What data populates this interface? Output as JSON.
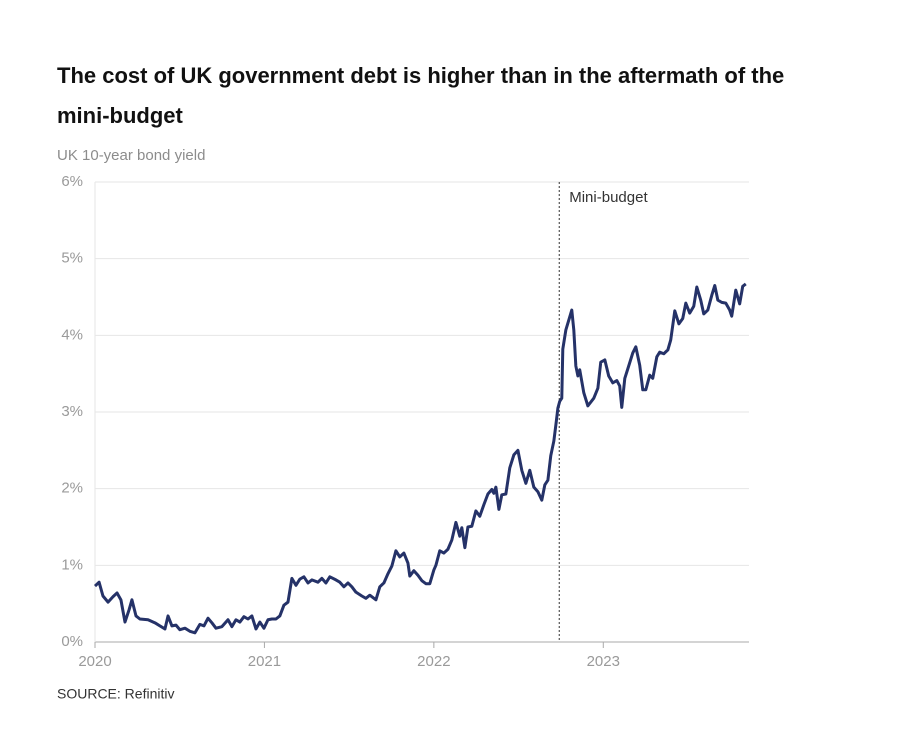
{
  "chart_data": {
    "type": "line",
    "title": "The cost of UK government debt is higher than in the aftermath of the mini-budget",
    "subtitle": "UK 10-year bond yield",
    "source": "SOURCE: Refinitiv",
    "annotation": {
      "text": "Mini-budget",
      "x": 2022.74
    },
    "xlim": [
      2020,
      2023.86
    ],
    "xticks": [
      2020,
      2021,
      2022,
      2023
    ],
    "ylim": [
      0,
      6
    ],
    "yticks": [
      {
        "value": 0,
        "label": "0%"
      },
      {
        "value": 1,
        "label": "1%"
      },
      {
        "value": 2,
        "label": "2%"
      },
      {
        "value": 3,
        "label": "3%"
      },
      {
        "value": 4,
        "label": "4%"
      },
      {
        "value": 5,
        "label": "5%"
      },
      {
        "value": 6,
        "label": "6%"
      }
    ],
    "grid": true,
    "color": "#253268",
    "x": [
      2020.0,
      2020.024,
      2020.047,
      2020.077,
      2020.106,
      2020.13,
      2020.153,
      2020.177,
      2020.201,
      2020.218,
      2020.242,
      2020.265,
      2020.313,
      2020.354,
      2020.383,
      2020.413,
      2020.431,
      2020.454,
      2020.478,
      2020.501,
      2020.531,
      2020.56,
      2020.59,
      2020.619,
      2020.643,
      2020.667,
      2020.69,
      2020.714,
      2020.749,
      2020.785,
      2020.808,
      2020.832,
      2020.855,
      2020.879,
      2020.903,
      2020.926,
      2020.95,
      2020.973,
      2020.997,
      2021.021,
      2021.044,
      2021.068,
      2021.091,
      2021.115,
      2021.139,
      2021.162,
      2021.186,
      2021.209,
      2021.233,
      2021.257,
      2021.28,
      2021.316,
      2021.339,
      2021.363,
      2021.386,
      2021.422,
      2021.445,
      2021.469,
      2021.493,
      2021.516,
      2021.54,
      2021.575,
      2021.599,
      2021.622,
      2021.658,
      2021.681,
      2021.705,
      2021.729,
      2021.752,
      2021.776,
      2021.799,
      2021.823,
      2021.847,
      2021.858,
      2021.882,
      2021.906,
      2021.929,
      2021.953,
      2021.976,
      2022.0,
      2022.012,
      2022.035,
      2022.059,
      2022.083,
      2022.106,
      2022.13,
      2022.153,
      2022.165,
      2022.183,
      2022.201,
      2022.224,
      2022.248,
      2022.271,
      2022.295,
      2022.319,
      2022.342,
      2022.354,
      2022.366,
      2022.384,
      2022.401,
      2022.425,
      2022.448,
      2022.472,
      2022.496,
      2022.519,
      2022.543,
      2022.566,
      2022.59,
      2022.614,
      2022.637,
      2022.655,
      2022.673,
      2022.69,
      2022.708,
      2022.72,
      2022.732,
      2022.743,
      2022.755,
      2022.761,
      2022.779,
      2022.802,
      2022.814,
      2022.826,
      2022.838,
      2022.85,
      2022.861,
      2022.885,
      2022.909,
      2022.944,
      2022.968,
      2022.985,
      2023.009,
      2023.032,
      2023.056,
      2023.08,
      2023.097,
      2023.109,
      2023.127,
      2023.15,
      2023.174,
      2023.192,
      2023.215,
      2023.233,
      2023.251,
      2023.274,
      2023.292,
      2023.316,
      2023.333,
      2023.357,
      2023.381,
      2023.398,
      2023.422,
      2023.446,
      2023.469,
      2023.487,
      2023.51,
      2023.534,
      2023.552,
      2023.575,
      2023.593,
      2023.617,
      2023.64,
      2023.658,
      2023.676,
      2023.699,
      2023.723,
      2023.746,
      2023.758,
      2023.782,
      2023.805,
      2023.823,
      2023.841
    ],
    "values": [
      0.73,
      0.78,
      0.6,
      0.52,
      0.59,
      0.64,
      0.55,
      0.26,
      0.42,
      0.55,
      0.34,
      0.3,
      0.29,
      0.25,
      0.21,
      0.17,
      0.34,
      0.21,
      0.22,
      0.16,
      0.18,
      0.14,
      0.12,
      0.23,
      0.21,
      0.31,
      0.25,
      0.18,
      0.2,
      0.29,
      0.2,
      0.29,
      0.26,
      0.33,
      0.3,
      0.34,
      0.17,
      0.26,
      0.18,
      0.29,
      0.3,
      0.3,
      0.34,
      0.48,
      0.52,
      0.83,
      0.74,
      0.82,
      0.85,
      0.77,
      0.81,
      0.78,
      0.83,
      0.77,
      0.85,
      0.81,
      0.78,
      0.72,
      0.77,
      0.72,
      0.65,
      0.6,
      0.57,
      0.61,
      0.55,
      0.72,
      0.77,
      0.89,
      0.99,
      1.19,
      1.11,
      1.16,
      1.03,
      0.86,
      0.93,
      0.87,
      0.8,
      0.76,
      0.76,
      0.94,
      1.0,
      1.19,
      1.16,
      1.21,
      1.33,
      1.56,
      1.38,
      1.49,
      1.23,
      1.5,
      1.51,
      1.71,
      1.64,
      1.79,
      1.93,
      1.99,
      1.94,
      2.02,
      1.73,
      1.92,
      1.93,
      2.27,
      2.44,
      2.5,
      2.24,
      2.07,
      2.24,
      2.02,
      1.96,
      1.85,
      2.05,
      2.11,
      2.43,
      2.62,
      2.83,
      3.05,
      3.14,
      3.18,
      3.82,
      4.07,
      4.24,
      4.33,
      4.07,
      3.6,
      3.47,
      3.55,
      3.25,
      3.08,
      3.18,
      3.31,
      3.65,
      3.68,
      3.47,
      3.38,
      3.41,
      3.34,
      3.06,
      3.44,
      3.6,
      3.77,
      3.85,
      3.61,
      3.29,
      3.29,
      3.48,
      3.44,
      3.72,
      3.78,
      3.76,
      3.81,
      3.94,
      4.32,
      4.15,
      4.22,
      4.42,
      4.29,
      4.38,
      4.63,
      4.46,
      4.28,
      4.33,
      4.52,
      4.65,
      4.46,
      4.43,
      4.42,
      4.33,
      4.25,
      4.59,
      4.41,
      4.64,
      4.67
    ]
  }
}
